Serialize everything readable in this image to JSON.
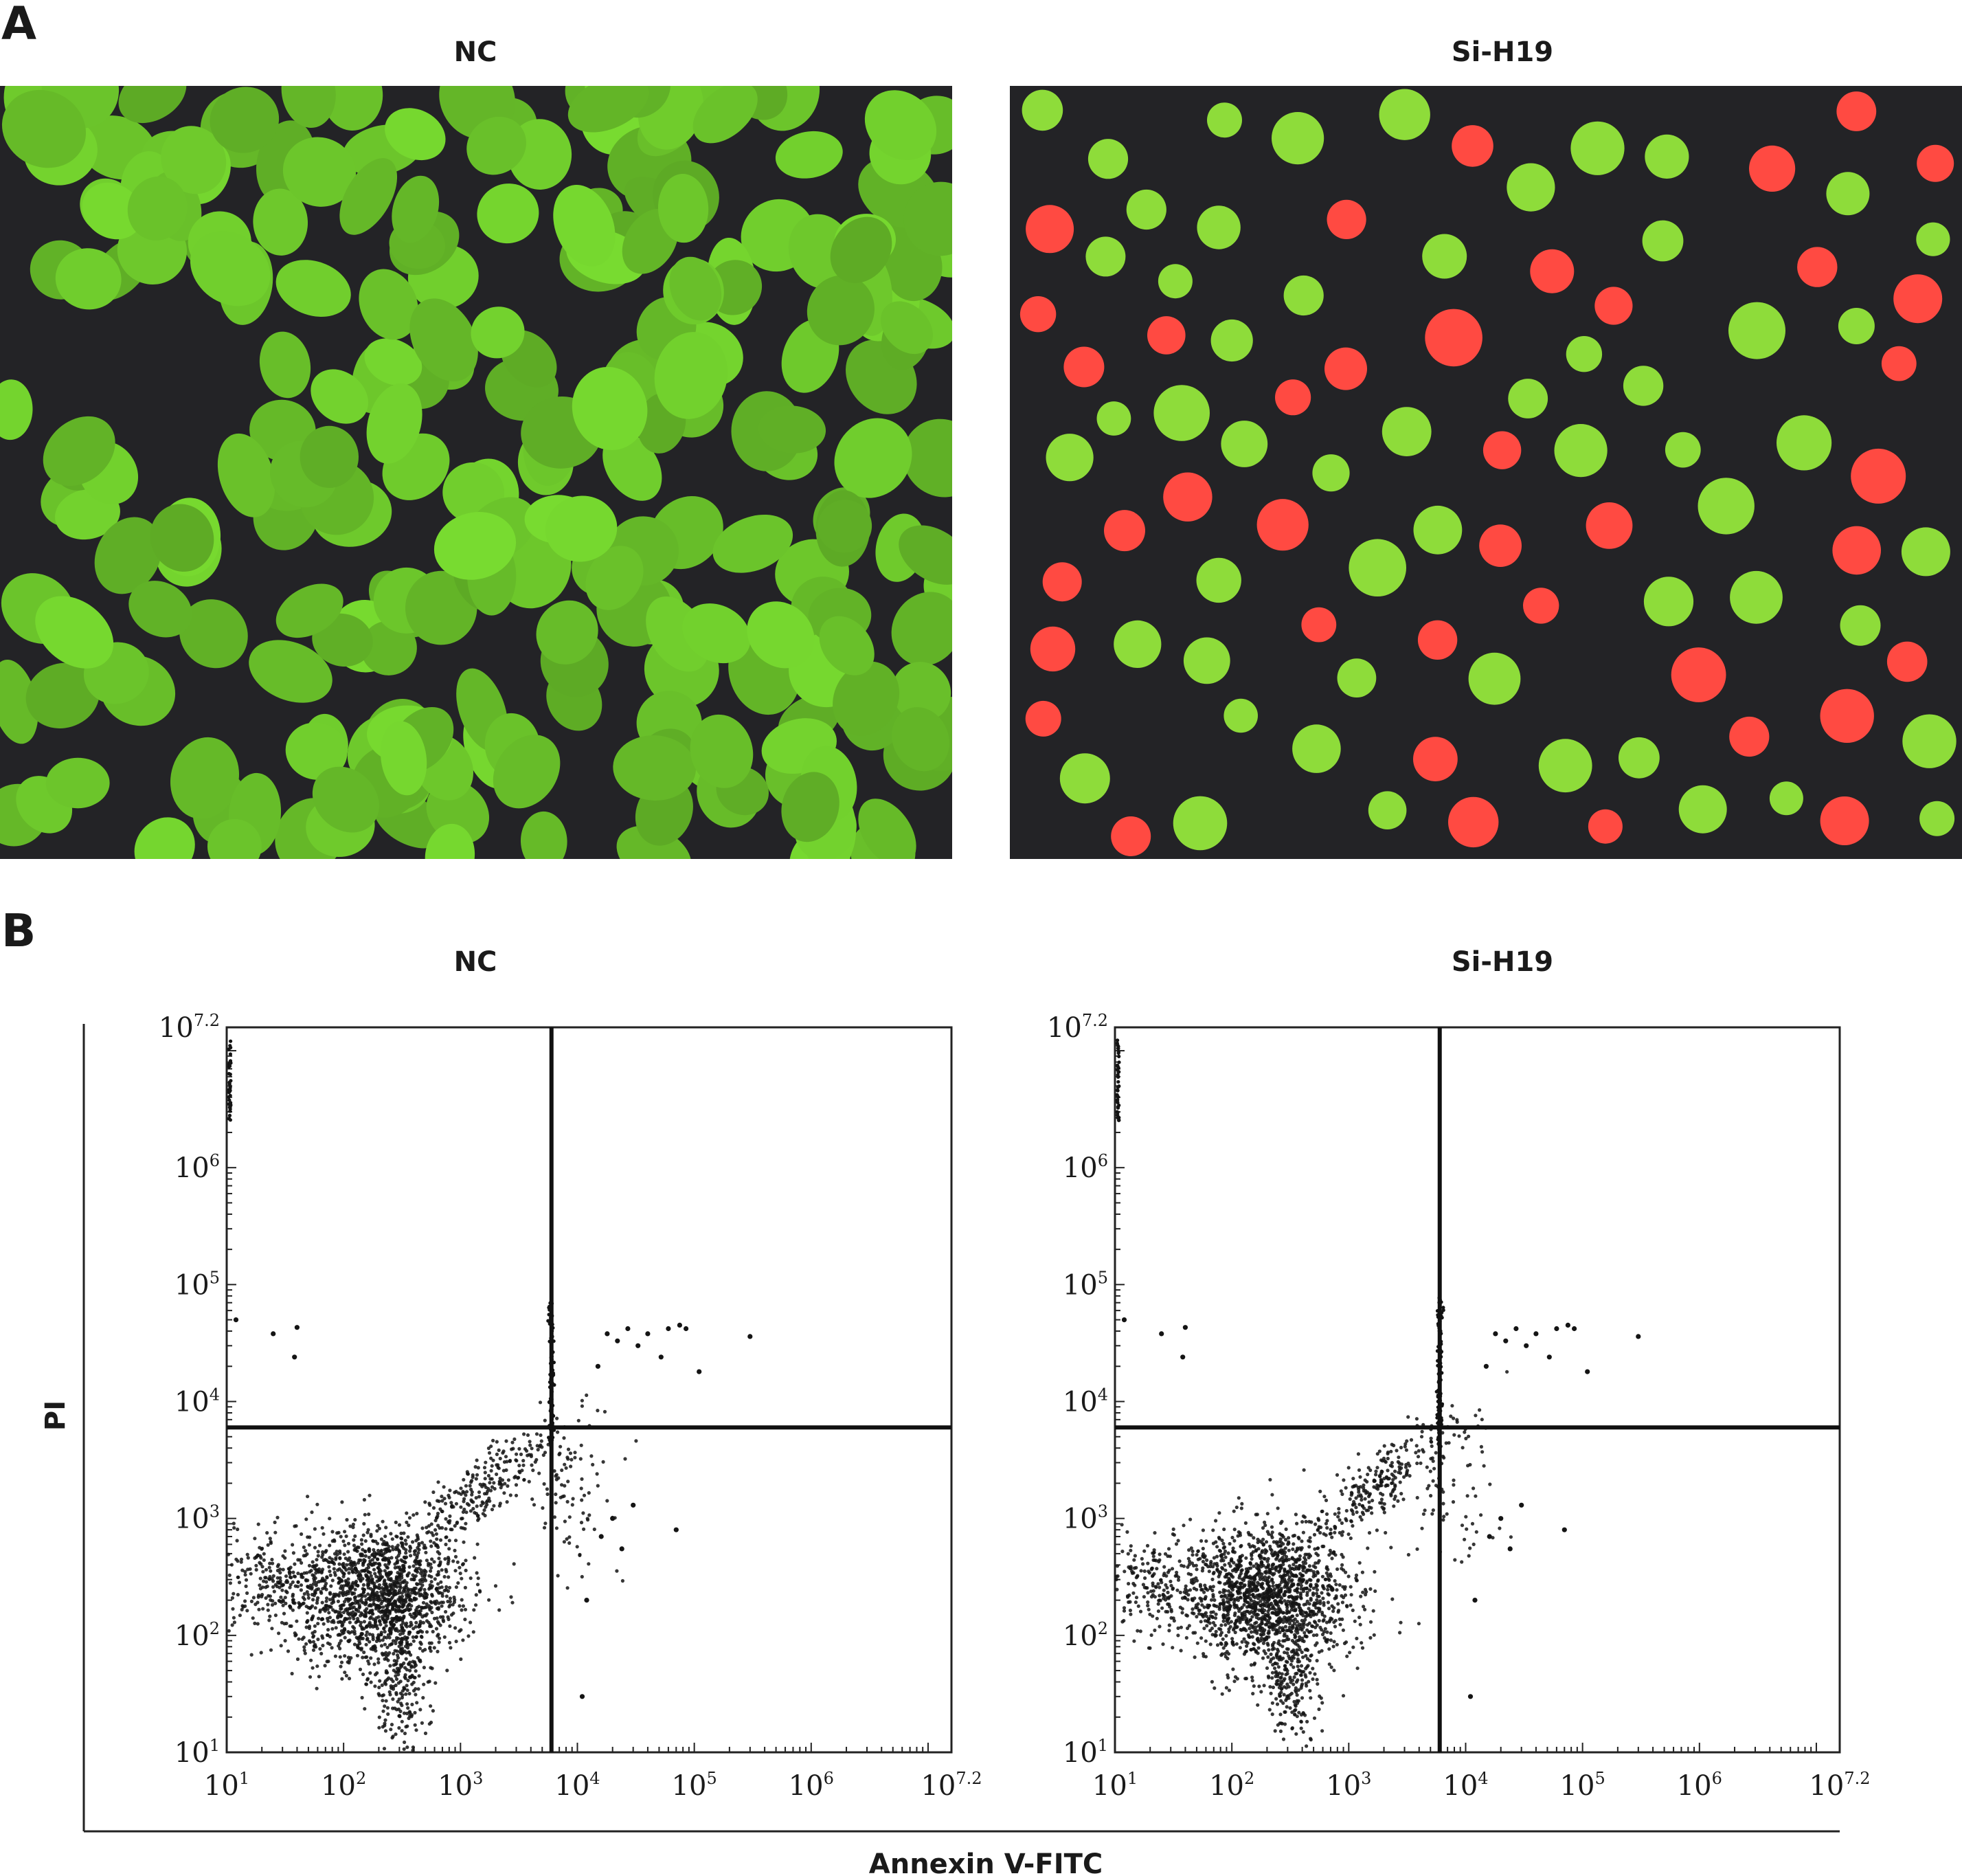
{
  "panel_a": {
    "letter": "A",
    "left_title": "NC",
    "right_title": "Si-H19",
    "colors": {
      "background": "#232326",
      "live_cells": "#8edc3a",
      "dead_cells": "#ff4a42"
    }
  },
  "panel_b": {
    "letter": "B",
    "ylabel": "PI",
    "xlabel": "Annexin V-FITC"
  },
  "chart_data": [
    {
      "type": "scatter",
      "title": "NC",
      "xlabel": "Annexin V-FITC",
      "ylabel": "PI",
      "xscale": "log",
      "yscale": "log",
      "xlim": [
        10,
        15848932
      ],
      "ylim": [
        10,
        15848932
      ],
      "tick_labels": [
        "10^1",
        "10^2",
        "10^3",
        "10^4",
        "10^5",
        "10^6",
        "10^7.2"
      ],
      "quadrant_gate": {
        "x": 6000,
        "y": 6000
      },
      "clusters": [
        {
          "name": "main",
          "center": [
            200,
            220
          ],
          "spread_decades": [
            0.35,
            0.3
          ],
          "count": 1500
        },
        {
          "name": "left-arm",
          "center": [
            22,
            280
          ],
          "spread_decades": [
            0.25,
            0.22
          ],
          "count": 220
        },
        {
          "name": "lower-tail",
          "center": [
            320,
            40
          ],
          "spread_decades": [
            0.12,
            0.3
          ],
          "count": 220
        },
        {
          "name": "diagonal",
          "center": [
            1600,
            1800
          ],
          "spread_decades": [
            0.35,
            0.3
          ],
          "count": 280
        },
        {
          "name": "right-spread",
          "center": [
            9000,
            1500
          ],
          "spread_decades": [
            0.2,
            0.35
          ],
          "count": 75
        }
      ],
      "points": [
        [
          12,
          50000
        ],
        [
          25,
          38000
        ],
        [
          40,
          43000
        ],
        [
          38,
          24000
        ],
        [
          15000,
          20000
        ],
        [
          18000,
          38000
        ],
        [
          22000,
          33000
        ],
        [
          27000,
          42000
        ],
        [
          33000,
          30000
        ],
        [
          40000,
          38000
        ],
        [
          52000,
          24000
        ],
        [
          60000,
          42000
        ],
        [
          85000,
          42000
        ],
        [
          110000,
          18000
        ],
        [
          300000,
          36000
        ],
        [
          75000,
          45000
        ],
        [
          16000,
          700
        ],
        [
          20000,
          1000
        ],
        [
          24000,
          550
        ],
        [
          30000,
          1300
        ],
        [
          70000,
          800
        ],
        [
          12000,
          200
        ],
        [
          11000,
          30
        ]
      ]
    },
    {
      "type": "scatter",
      "title": "Si-H19",
      "xlabel": "Annexin V-FITC",
      "ylabel": "PI",
      "xscale": "log",
      "yscale": "log",
      "xlim": [
        10,
        15848932
      ],
      "ylim": [
        10,
        15848932
      ],
      "tick_labels": [
        "10^1",
        "10^2",
        "10^3",
        "10^4",
        "10^5",
        "10^6",
        "10^7.2"
      ],
      "quadrant_gate": {
        "x": 6000,
        "y": 6000
      },
      "clusters": [
        {
          "name": "main",
          "center": [
            200,
            220
          ],
          "spread_decades": [
            0.35,
            0.3
          ],
          "count": 1500
        },
        {
          "name": "left-arm",
          "center": [
            22,
            280
          ],
          "spread_decades": [
            0.25,
            0.22
          ],
          "count": 220
        },
        {
          "name": "lower-tail",
          "center": [
            320,
            40
          ],
          "spread_decades": [
            0.12,
            0.3
          ],
          "count": 220
        },
        {
          "name": "diagonal",
          "center": [
            1600,
            1800
          ],
          "spread_decades": [
            0.35,
            0.3
          ],
          "count": 280
        },
        {
          "name": "right-spread",
          "center": [
            9000,
            1500
          ],
          "spread_decades": [
            0.2,
            0.35
          ],
          "count": 60
        }
      ],
      "points": [
        [
          12,
          50000
        ],
        [
          25,
          38000
        ],
        [
          40,
          43000
        ],
        [
          38,
          24000
        ],
        [
          15000,
          20000
        ],
        [
          18000,
          38000
        ],
        [
          22000,
          33000
        ],
        [
          27000,
          42000
        ],
        [
          33000,
          30000
        ],
        [
          40000,
          38000
        ],
        [
          52000,
          24000
        ],
        [
          60000,
          42000
        ],
        [
          85000,
          42000
        ],
        [
          110000,
          18000
        ],
        [
          300000,
          36000
        ],
        [
          75000,
          45000
        ],
        [
          16000,
          700
        ],
        [
          20000,
          1000
        ],
        [
          24000,
          550
        ],
        [
          30000,
          1300
        ],
        [
          70000,
          800
        ],
        [
          12000,
          200
        ],
        [
          11000,
          30
        ]
      ]
    }
  ]
}
